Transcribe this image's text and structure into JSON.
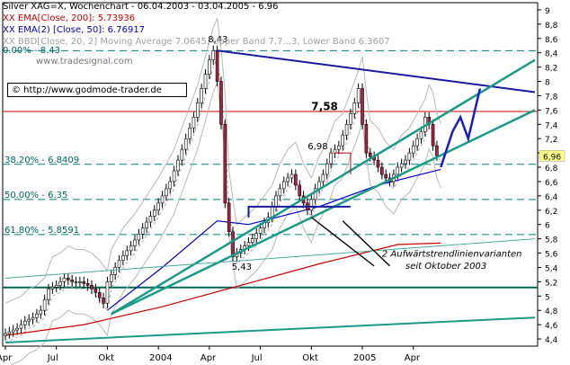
{
  "header": {
    "line1": "Silver XAG=X, Wochenchart - 06.04.2003 - 03.04.2005 - 6.96",
    "line2": "XX EMA[Close, 200]: 5.73936",
    "line3": "XX EMA(2) [Close, 50]: 6.76917",
    "line4": "XX BBD[Close, 20, 2] Moving Average 7.0645, Upper Band 7.7...3, Lower Band 6.3607",
    "line5": "0.00% - 8.43",
    "watermark": "www.tradesignal.com",
    "colors": {
      "title": "#000000",
      "ema200": "#cc0000",
      "ema50": "#0000cc",
      "bbd": "#9a9a9a",
      "fib": "#006666"
    }
  },
  "url_label": "© http://www.godmode-trader.de",
  "annotations": {
    "high": "8,43",
    "low": "5,43",
    "mid": "7,58",
    "level": "6,98",
    "current": "6,96",
    "trend_note_1": "2 Aufwärtstrendlinienvarianten",
    "trend_note_2": "seit Oktober 2003"
  },
  "chart_data": {
    "type": "candlestick",
    "title": "Silver XAG=X, Wochenchart - 06.04.2003 - 03.04.2005 - 6.96",
    "x_ticks": [
      "Apr",
      "Jul",
      "Okt",
      "2004",
      "Apr",
      "Jul",
      "Okt",
      "2005",
      "Apr"
    ],
    "y_ticks": [
      "4,4",
      "4,6",
      "4,8",
      "5",
      "5,2",
      "5,4",
      "5,6",
      "5,8",
      "6",
      "6,2",
      "6,4",
      "6,6",
      "6,8",
      "7",
      "7,2",
      "7,4",
      "7,6",
      "7,8",
      "8",
      "8,2",
      "8,4",
      "8,6",
      "8,8",
      "9"
    ],
    "ylim": [
      4.3,
      9.1
    ],
    "last_value": 6.96,
    "fibonacci_levels": [
      {
        "label": "0.00% - 8.43",
        "value": 8.43
      },
      {
        "label": "38.20% - 6.8409",
        "value": 6.8409
      },
      {
        "label": "50.00% - 6.35",
        "value": 6.35
      },
      {
        "label": "61.80% - 5.8591",
        "value": 5.8591
      }
    ],
    "horizontal_levels": [
      7.58,
      5.12
    ],
    "close_path": [
      [
        0,
        4.45
      ],
      [
        2,
        4.5
      ],
      [
        4,
        4.55
      ],
      [
        6,
        4.65
      ],
      [
        8,
        4.7
      ],
      [
        10,
        4.8
      ],
      [
        12,
        5.1
      ],
      [
        14,
        5.15
      ],
      [
        16,
        5.25
      ],
      [
        18,
        5.2
      ],
      [
        20,
        5.2
      ],
      [
        22,
        5.15
      ],
      [
        24,
        5.05
      ],
      [
        26,
        4.9
      ],
      [
        27,
        5.2
      ],
      [
        30,
        5.5
      ],
      [
        33,
        5.7
      ],
      [
        36,
        5.95
      ],
      [
        39,
        6.2
      ],
      [
        41,
        6.4
      ],
      [
        43,
        6.6
      ],
      [
        45,
        6.9
      ],
      [
        47,
        7.2
      ],
      [
        49,
        7.5
      ],
      [
        51,
        7.9
      ],
      [
        53,
        8.3
      ],
      [
        54,
        8.43
      ],
      [
        55,
        8.0
      ],
      [
        56,
        7.4
      ],
      [
        57,
        6.3
      ],
      [
        58,
        5.9
      ],
      [
        59,
        5.55
      ],
      [
        60,
        5.6
      ],
      [
        62,
        5.7
      ],
      [
        64,
        5.8
      ],
      [
        66,
        5.95
      ],
      [
        68,
        6.1
      ],
      [
        70,
        6.4
      ],
      [
        72,
        6.6
      ],
      [
        74,
        6.7
      ],
      [
        76,
        6.4
      ],
      [
        78,
        6.2
      ],
      [
        80,
        6.5
      ],
      [
        82,
        6.7
      ],
      [
        84,
        7.0
      ],
      [
        86,
        7.1
      ],
      [
        88,
        7.4
      ],
      [
        90,
        7.7
      ],
      [
        91,
        7.9
      ],
      [
        92,
        7.4
      ],
      [
        93,
        7.0
      ],
      [
        95,
        6.9
      ],
      [
        97,
        6.7
      ],
      [
        99,
        6.6
      ],
      [
        101,
        6.8
      ],
      [
        103,
        6.9
      ],
      [
        105,
        7.1
      ],
      [
        107,
        7.3
      ],
      [
        108,
        7.5
      ],
      [
        109,
        7.4
      ],
      [
        110,
        7.1
      ],
      [
        111,
        6.96
      ]
    ],
    "ema200_path": [
      [
        0,
        4.45
      ],
      [
        20,
        4.6
      ],
      [
        40,
        4.85
      ],
      [
        60,
        5.15
      ],
      [
        80,
        5.45
      ],
      [
        100,
        5.72
      ],
      [
        111,
        5.74
      ]
    ],
    "ema50_path": [
      [
        26,
        4.8
      ],
      [
        40,
        5.4
      ],
      [
        54,
        6.05
      ],
      [
        62,
        6.0
      ],
      [
        80,
        6.25
      ],
      [
        95,
        6.55
      ],
      [
        111,
        6.77
      ]
    ],
    "trendlines": [
      {
        "name": "upper",
        "points": [
          [
            54,
            8.43
          ],
          [
            135,
            7.85
          ]
        ]
      },
      {
        "name": "support-1",
        "points": [
          [
            27,
            4.75
          ],
          [
            135,
            7.6
          ]
        ]
      },
      {
        "name": "support-2",
        "points": [
          [
            27,
            4.75
          ],
          [
            135,
            8.3
          ]
        ]
      },
      {
        "name": "long-term",
        "points": [
          [
            0,
            4.35
          ],
          [
            135,
            4.7
          ]
        ]
      },
      {
        "name": "teal-upper",
        "points": [
          [
            0,
            5.25
          ],
          [
            135,
            5.8
          ]
        ]
      }
    ],
    "projection": [
      [
        111,
        6.8
      ],
      [
        114,
        7.3
      ],
      [
        116,
        7.5
      ],
      [
        118,
        7.2
      ],
      [
        121,
        7.9
      ]
    ],
    "range_box": [
      [
        62,
        6.25
      ],
      [
        88,
        6.25
      ]
    ]
  }
}
